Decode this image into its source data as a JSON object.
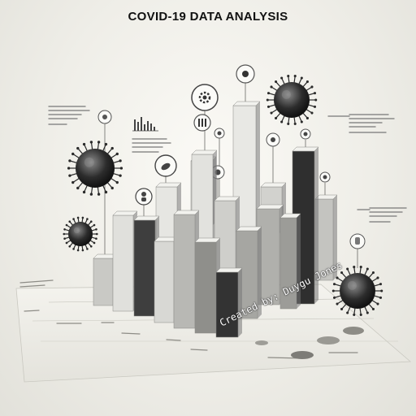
{
  "title": "COVID-19 DATA ANALYSIS",
  "watermark": "Created by: Duygu Jones",
  "colors": {
    "background": "#efeee8",
    "bar_dark": "#3a3a3a",
    "bar_light": "#d6d6d2",
    "virus": "#2a2a2a"
  },
  "icons": [
    "gear-icon",
    "chart-icon",
    "pill-icon",
    "person-icon",
    "virus-icon",
    "lab-icon"
  ]
}
